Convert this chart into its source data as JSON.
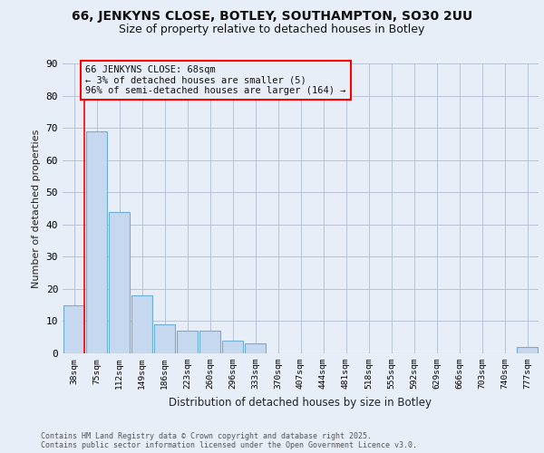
{
  "title1": "66, JENKYNS CLOSE, BOTLEY, SOUTHAMPTON, SO30 2UU",
  "title2": "Size of property relative to detached houses in Botley",
  "xlabel": "Distribution of detached houses by size in Botley",
  "ylabel": "Number of detached properties",
  "categories": [
    "38sqm",
    "75sqm",
    "112sqm",
    "149sqm",
    "186sqm",
    "223sqm",
    "260sqm",
    "296sqm",
    "333sqm",
    "370sqm",
    "407sqm",
    "444sqm",
    "481sqm",
    "518sqm",
    "555sqm",
    "592sqm",
    "629sqm",
    "666sqm",
    "703sqm",
    "740sqm",
    "777sqm"
  ],
  "values": [
    15,
    69,
    44,
    18,
    9,
    7,
    7,
    4,
    3,
    0,
    0,
    0,
    0,
    0,
    0,
    0,
    0,
    0,
    0,
    0,
    2
  ],
  "bar_color": "#c5d8f0",
  "bar_edge_color": "#6baed6",
  "subject_label": "66 JENKYNS CLOSE: 68sqm",
  "annotation_line1": "← 3% of detached houses are smaller (5)",
  "annotation_line2": "96% of semi-detached houses are larger (164) →",
  "footer1": "Contains HM Land Registry data © Crown copyright and database right 2025.",
  "footer2": "Contains public sector information licensed under the Open Government Licence v3.0.",
  "bg_color": "#e8eef8",
  "ylim": [
    0,
    90
  ],
  "yticks": [
    0,
    10,
    20,
    30,
    40,
    50,
    60,
    70,
    80,
    90
  ],
  "vline_x": 0.47
}
